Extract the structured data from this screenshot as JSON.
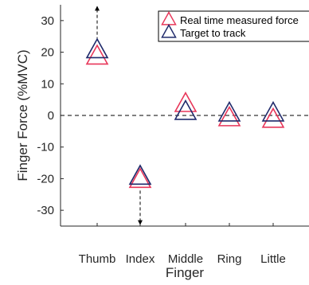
{
  "chart_data": {
    "type": "scatter",
    "xlabel": "Finger",
    "ylabel": "Finger Force (%MVC)",
    "categories": [
      "Thumb",
      "Index",
      "Middle",
      "Ring",
      "Little"
    ],
    "ylim": [
      -35,
      35
    ],
    "yticks": [
      -30,
      -20,
      -10,
      0,
      10,
      20,
      30
    ],
    "series": [
      {
        "name": "Real time measured force",
        "color": "#e8375a",
        "marker": "triangle-open",
        "values": [
          18.5,
          -20.5,
          3.5,
          -1,
          -1.5
        ]
      },
      {
        "name": "Target to track",
        "color": "#1f2a6b",
        "marker": "triangle-open",
        "values": [
          20.5,
          -19.5,
          1,
          0.5,
          0.5
        ]
      }
    ],
    "reference_line": {
      "y": 0,
      "style": "dashed"
    },
    "annotations": [
      {
        "category": "Thumb",
        "from": 20.5,
        "direction": "up",
        "style": "dashed-arrow"
      },
      {
        "category": "Index",
        "from": -20.5,
        "direction": "down",
        "style": "dashed-arrow"
      }
    ],
    "legend": {
      "position": "top-right"
    },
    "grid": false
  }
}
